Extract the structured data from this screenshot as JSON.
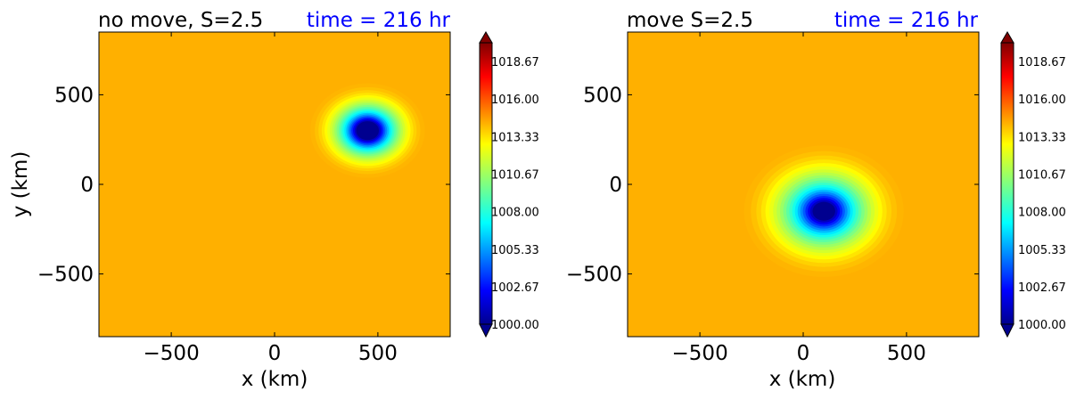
{
  "chart_data": [
    {
      "type": "heatmap",
      "title": "no move, S=2.5",
      "time_label": "time = 216 hr",
      "xlabel": "x (km)",
      "ylabel": "y (km)",
      "xlim": [
        -850,
        850
      ],
      "ylim": [
        -850,
        850
      ],
      "xticks": [
        -500,
        0,
        500
      ],
      "yticks": [
        -500,
        0,
        500
      ],
      "xtick_labels": [
        "−500",
        "0",
        "500"
      ],
      "ytick_labels": [
        "−500",
        "0",
        "500"
      ],
      "background_pressure_hPa": 1014.3,
      "center": {
        "x": 450,
        "y": 300
      },
      "min_pressure_hPa": 1000,
      "inner_radius_km": 55,
      "outer_radius_km": 320,
      "colorbar": {
        "min": 1000,
        "max": 1020,
        "tick_labels": [
          "1000.00",
          "1002.67",
          "1005.33",
          "1008.00",
          "1010.67",
          "1013.33",
          "1016.00",
          "1018.67"
        ],
        "tick_values": [
          1000.0,
          1002.67,
          1005.33,
          1008.0,
          1010.67,
          1013.33,
          1016.0,
          1018.67
        ]
      }
    },
    {
      "type": "heatmap",
      "title": "move S=2.5",
      "time_label": "time = 216 hr",
      "xlabel": "x (km)",
      "ylabel": "",
      "xlim": [
        -850,
        850
      ],
      "ylim": [
        -850,
        850
      ],
      "xticks": [
        -500,
        0,
        500
      ],
      "yticks": [
        -500,
        0,
        500
      ],
      "xtick_labels": [
        "−500",
        "0",
        "500"
      ],
      "ytick_labels": [
        "−500",
        "0",
        "500"
      ],
      "background_pressure_hPa": 1014.3,
      "center": {
        "x": 100,
        "y": -150
      },
      "min_pressure_hPa": 1000,
      "inner_radius_km": 55,
      "outer_radius_km": 450,
      "colorbar": {
        "min": 1000,
        "max": 1020,
        "tick_labels": [
          "1000.00",
          "1002.67",
          "1005.33",
          "1008.00",
          "1010.67",
          "1013.33",
          "1016.00",
          "1018.67"
        ],
        "tick_values": [
          1000.0,
          1002.67,
          1005.33,
          1008.0,
          1010.67,
          1013.33,
          1016.0,
          1018.67
        ]
      }
    }
  ],
  "colors": {
    "time_label": "#0000ff",
    "text": "#000000",
    "background": "#fdb400",
    "jet_stops": [
      "#00008f",
      "#0000ff",
      "#0080ff",
      "#00ffff",
      "#80ff80",
      "#ffff00",
      "#ff8000",
      "#ff0000",
      "#800000"
    ]
  }
}
